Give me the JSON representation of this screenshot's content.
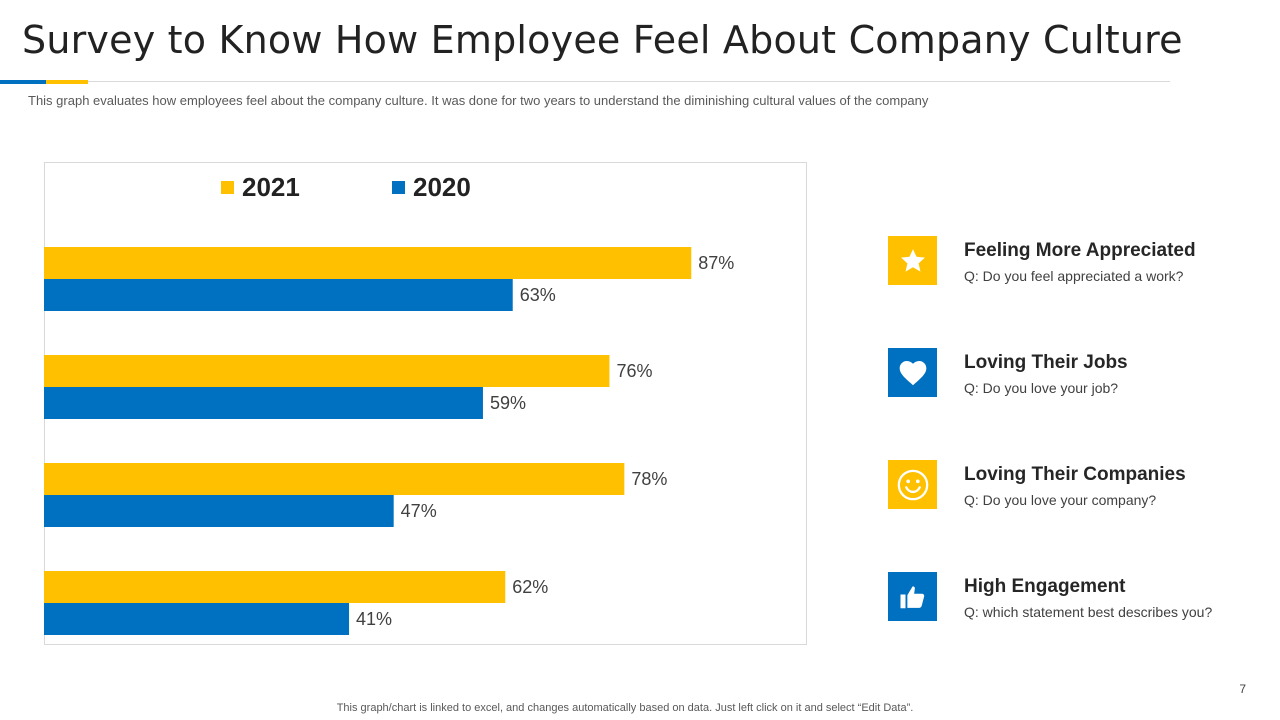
{
  "title": "Survey to Know How Employee Feel About Company Culture",
  "subtitle": "This graph evaluates how employees feel about the company culture. It was done for two years to understand the diminishing cultural values of the company",
  "colors": {
    "yellow": "#ffc000",
    "blue": "#0070c0"
  },
  "chart_data": {
    "type": "bar",
    "orientation": "horizontal",
    "categories": [
      "Feeling More Appreciated",
      "Loving Their Jobs",
      "Loving Their Companies",
      "High Engagement"
    ],
    "series": [
      {
        "name": "2021",
        "color": "#ffc000",
        "values": [
          87,
          76,
          78,
          62
        ],
        "labels": [
          "87%",
          "76%",
          "78%",
          "62%"
        ]
      },
      {
        "name": "2020",
        "color": "#0070c0",
        "values": [
          63,
          59,
          47,
          41
        ],
        "labels": [
          "63%",
          "59%",
          "47%",
          "41%"
        ]
      }
    ],
    "xlim": [
      0,
      100
    ],
    "legend": "top",
    "grid": false
  },
  "legend": {
    "item_2021": "2021",
    "item_2020": "2020"
  },
  "categories": [
    {
      "title": "Feeling More Appreciated",
      "question": "Q: Do you feel appreciated a work?",
      "icon": "star-icon"
    },
    {
      "title": "Loving Their Jobs",
      "question": "Q: Do you love your job?",
      "icon": "heart-icon"
    },
    {
      "title": "Loving Their Companies",
      "question": "Q: Do you love your company?",
      "icon": "smiley-icon"
    },
    {
      "title": "High Engagement",
      "question": "Q: which statement best describes you?",
      "icon": "thumbs-up-icon"
    }
  ],
  "footer": "This graph/chart is linked to excel,  and changes automatically based on data. Just left click on it and select “Edit Data”.",
  "page_number": "7"
}
